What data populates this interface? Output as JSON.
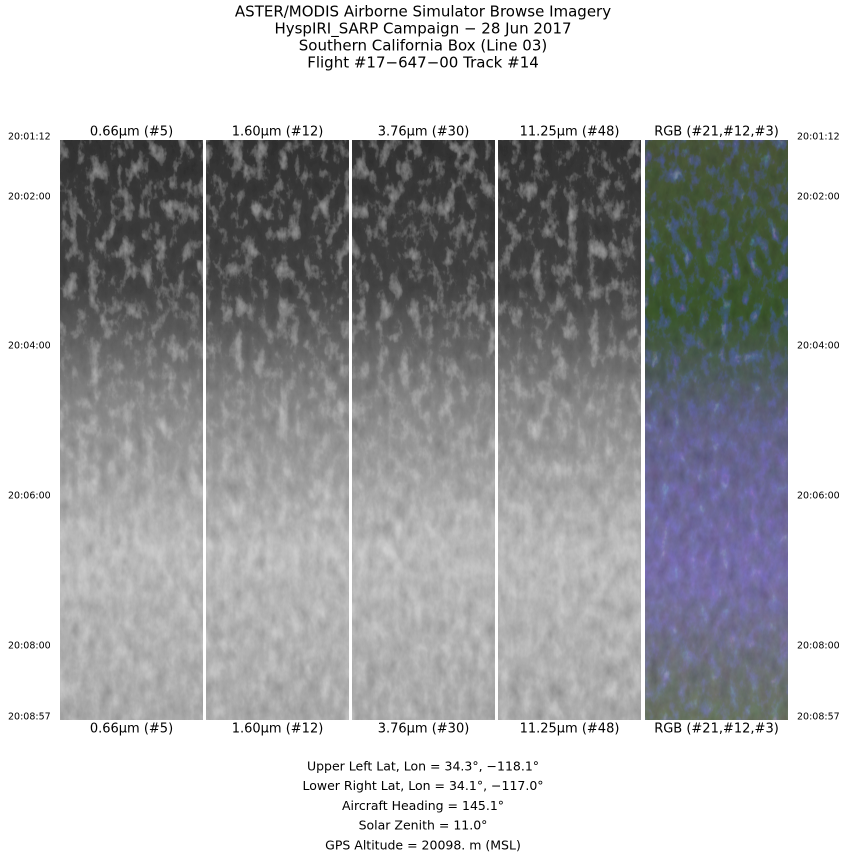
{
  "title_lines": [
    "ASTER/MODIS Airborne Simulator Browse Imagery",
    "HyspIRI_SARP Campaign − 28 Jun 2017",
    "Southern California Box (Line 03)",
    "Flight #17−647−00 Track #14"
  ],
  "panels": {
    "top_labels": [
      "0.66µm (#5)",
      "1.60µm (#12)",
      "3.76µm (#30)",
      "11.25µm (#48)",
      "RGB (#21,#12,#3)"
    ],
    "bottom_labels": [
      "0.66µm (#5)",
      "1.60µm (#12)",
      "3.76µm (#30)",
      "11.25µm (#48)",
      "RGB (#21,#12,#3)"
    ]
  },
  "time_labels": {
    "left": [
      "20:01:12",
      "20:02:00",
      "20:04:00",
      "20:06:00",
      "20:08:00",
      "20:08:57"
    ],
    "right": [
      "20:01:12",
      "20:02:00",
      "20:04:00",
      "20:06:00",
      "20:08:00",
      "20:08:57"
    ]
  },
  "footer_lines": [
    "Upper Left Lat, Lon =   34.3°, −118.1°",
    "Lower Right Lat, Lon =   34.1°, −117.0°",
    "Aircraft Heading =  145.1°",
    "Solar Zenith =   11.0°",
    "GPS Altitude =  20098. m (MSL)"
  ]
}
